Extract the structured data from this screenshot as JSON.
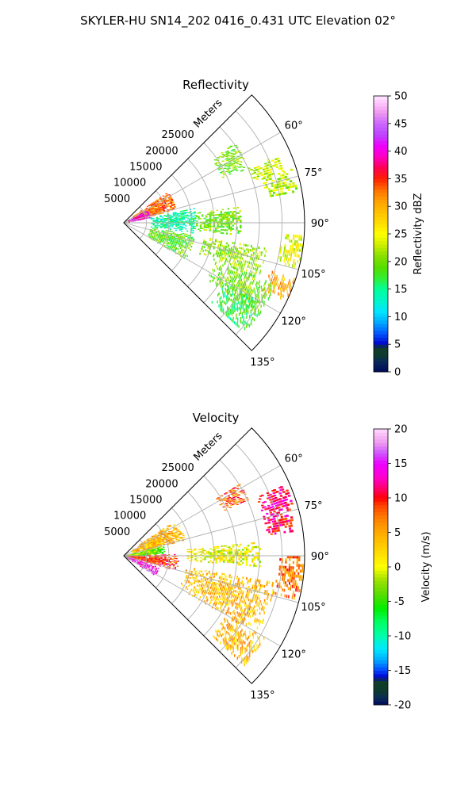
{
  "figure": {
    "title": "SKYLER-HU  SN14_202  0416_0.431 UTC Elevation 02°"
  },
  "chart_data": [
    {
      "type": "heatmap",
      "projection": "polar-sector",
      "title": "Reflectivity",
      "range_label": "Meters",
      "range_ticks": [
        5000,
        10000,
        15000,
        20000,
        25000
      ],
      "range_max": 40000,
      "azimuth_range": [
        45,
        135
      ],
      "azimuth_ticks": [
        "60°",
        "75°",
        "90°",
        "105°",
        "120°",
        "135°"
      ],
      "colorbar": {
        "label": "Reflectivity dBZ",
        "min": 0,
        "max": 50,
        "ticks": [
          0,
          5,
          10,
          15,
          20,
          25,
          30,
          35,
          40,
          45,
          50
        ]
      },
      "echo_regions": [
        {
          "az": [
            54,
            66
          ],
          "r": [
            24000,
            30000
          ],
          "value": 20
        },
        {
          "az": [
            66,
            72
          ],
          "r": [
            30000,
            37000
          ],
          "value": 23
        },
        {
          "az": [
            72,
            80
          ],
          "r": [
            32000,
            39000
          ],
          "value": 22
        },
        {
          "az": [
            55,
            75
          ],
          "r": [
            2000,
            12000
          ],
          "value": 33
        },
        {
          "az": [
            62,
            78
          ],
          "r": [
            1000,
            6000
          ],
          "value": 40
        },
        {
          "az": [
            78,
            98
          ],
          "r": [
            6000,
            16000
          ],
          "value": 14
        },
        {
          "az": [
            82,
            96
          ],
          "r": [
            16000,
            26000
          ],
          "value": 20
        },
        {
          "az": [
            94,
            104
          ],
          "r": [
            35000,
            40000
          ],
          "value": 24
        },
        {
          "az": [
            100,
            112
          ],
          "r": [
            18000,
            32000
          ],
          "value": 21
        },
        {
          "az": [
            112,
            124
          ],
          "r": [
            22000,
            36000
          ],
          "value": 20
        },
        {
          "az": [
            108,
            116
          ],
          "r": [
            34000,
            40000
          ],
          "value": 30
        },
        {
          "az": [
            100,
            120
          ],
          "r": [
            6000,
            16000
          ],
          "value": 19
        },
        {
          "az": [
            120,
            132
          ],
          "r": [
            26000,
            36000
          ],
          "value": 17
        }
      ]
    },
    {
      "type": "heatmap",
      "projection": "polar-sector",
      "title": "Velocity",
      "range_label": "Meters",
      "range_ticks": [
        5000,
        10000,
        15000,
        20000,
        25000
      ],
      "range_max": 40000,
      "azimuth_range": [
        45,
        135
      ],
      "azimuth_ticks": [
        "60°",
        "75°",
        "90°",
        "105°",
        "120°",
        "135°"
      ],
      "colorbar": {
        "label": "Velocity (m/s)",
        "min": -20,
        "max": 20,
        "ticks": [
          -20,
          -15,
          -10,
          -5,
          0,
          5,
          10,
          15,
          20
        ]
      },
      "echo_regions": [
        {
          "az": [
            58,
            66
          ],
          "r": [
            24000,
            30000
          ],
          "value": 8
        },
        {
          "az": [
            66,
            74
          ],
          "r": [
            32000,
            39000
          ],
          "value": 12
        },
        {
          "az": [
            74,
            82
          ],
          "r": [
            32000,
            38000
          ],
          "value": 11
        },
        {
          "az": [
            55,
            75
          ],
          "r": [
            2000,
            14000
          ],
          "value": 4
        },
        {
          "az": [
            75,
            88
          ],
          "r": [
            0,
            9000
          ],
          "value": -3
        },
        {
          "az": [
            88,
            106
          ],
          "r": [
            1000,
            12000
          ],
          "value": 9
        },
        {
          "az": [
            108,
            122
          ],
          "r": [
            0,
            8000
          ],
          "value": 15
        },
        {
          "az": [
            90,
            104
          ],
          "r": [
            34000,
            40000
          ],
          "value": 7
        },
        {
          "az": [
            84,
            94
          ],
          "r": [
            14000,
            30000
          ],
          "value": 0
        },
        {
          "az": [
            100,
            120
          ],
          "r": [
            14000,
            34000
          ],
          "value": 4
        },
        {
          "az": [
            120,
            132
          ],
          "r": [
            26000,
            36000
          ],
          "value": 4
        }
      ]
    }
  ]
}
